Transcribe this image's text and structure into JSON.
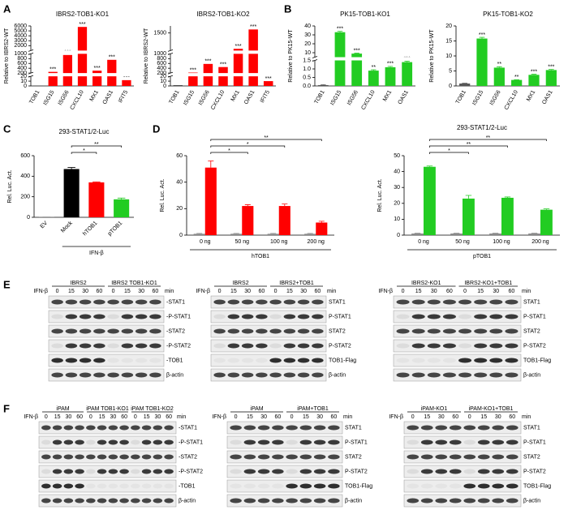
{
  "panel_labels": [
    "A",
    "B",
    "C",
    "D",
    "E",
    "F"
  ],
  "chart_data": [
    {
      "type": "bar",
      "title": "IBRS2-TOB1-KO1",
      "ylabel": "Relative to IBRS2-WT",
      "categories": [
        "TOB1",
        "ISG15",
        "ISG56",
        "CXCL10",
        "MX1",
        "OAS1",
        "IFIT5"
      ],
      "values": [
        0.5,
        250,
        950,
        5800,
        300,
        750,
        12
      ],
      "colors": [
        "#333333",
        "#ff0000",
        "#ff0000",
        "#ff0000",
        "#ff0000",
        "#ff0000",
        "#ff0000"
      ],
      "ysegments": [
        [
          0,
          20
        ],
        [
          200,
          1000
        ],
        [
          1000,
          6000
        ]
      ],
      "yticks": [
        0,
        10,
        20,
        200,
        400,
        600,
        800,
        1000,
        2000,
        3000,
        4000,
        5000,
        6000
      ],
      "annotations": [
        null,
        "***",
        "***",
        "***",
        "***",
        "***",
        "***"
      ]
    },
    {
      "type": "bar",
      "title": "IBRS2-TOB1-KO2",
      "ylabel": "Relative to IBRS2-WT",
      "categories": [
        "TOB1",
        "ISG15",
        "ISG56",
        "CXCL10",
        "MX1",
        "OAS1",
        "IFIT5"
      ],
      "values": [
        1.5,
        220,
        580,
        450,
        1050,
        1600,
        10
      ],
      "colors": [
        "#333333",
        "#ff0000",
        "#ff0000",
        "#ff0000",
        "#ff0000",
        "#ff0000",
        "#ff0000"
      ],
      "ysegments": [
        [
          0,
          20
        ],
        [
          200,
          1000
        ],
        [
          1000,
          1700
        ]
      ],
      "yticks": [
        0,
        10,
        20,
        200,
        400,
        600,
        800,
        1000,
        1500
      ],
      "annotations": [
        null,
        "***",
        "***",
        "***",
        "***",
        "***",
        "***"
      ]
    },
    {
      "type": "bar",
      "title": "PK15-TOB1-KO1",
      "ylabel": "Relative to PK15-WT",
      "categories": [
        "TOB1",
        "ISG15",
        "ISG56",
        "CXCL10",
        "MX1",
        "OAS1"
      ],
      "values": [
        0.05,
        33,
        9,
        0.9,
        1.1,
        1.4
      ],
      "errors": [
        0.02,
        1,
        0.5,
        0.05,
        0.05,
        0.05
      ],
      "colors": [
        "#555555",
        "#22cc22",
        "#22cc22",
        "#22cc22",
        "#22cc22",
        "#22cc22"
      ],
      "ysegments": [
        [
          0,
          1.5
        ],
        [
          5,
          40
        ]
      ],
      "yticks": [
        {
          "value": 0,
          "label": "0.0"
        },
        {
          "value": 0.5,
          "label": "0.5"
        },
        {
          "value": 1,
          "label": "1.0"
        },
        {
          "value": 1.5,
          "label": "1.5"
        },
        10,
        20,
        30,
        40
      ],
      "annotations": [
        null,
        "***",
        "***",
        "**",
        "***",
        "***"
      ]
    },
    {
      "type": "bar",
      "title": "PK15-TOB1-KO2",
      "ylabel": "Relative to PK15-WT",
      "categories": [
        "TOB1",
        "ISG15",
        "ISG56",
        "CXCL10",
        "MX1",
        "OAS1"
      ],
      "values": [
        0.8,
        15.8,
        6.1,
        2.0,
        3.7,
        5.3
      ],
      "errors": [
        0.1,
        0.4,
        0.3,
        0.1,
        0.2,
        0.2
      ],
      "colors": [
        "#555555",
        "#22cc22",
        "#22cc22",
        "#22cc22",
        "#22cc22",
        "#22cc22"
      ],
      "ylim": [
        0,
        20
      ],
      "yticks": [
        0,
        5,
        10,
        15,
        20
      ],
      "annotations": [
        null,
        "***",
        "**",
        "**",
        "***",
        "***"
      ]
    },
    {
      "type": "bar",
      "title": "293-STAT1/2-Luc",
      "ylabel": "Rel. Luc. Act.",
      "categories": [
        "EV",
        "Mock",
        "hTOB1",
        "pTOB1"
      ],
      "values": [
        2,
        470,
        340,
        175
      ],
      "errors": [
        1,
        15,
        5,
        12
      ],
      "colors": [
        "#888888",
        "#000000",
        "#ff0000",
        "#22cc22"
      ],
      "ylim": [
        0,
        600
      ],
      "yticks": [
        0,
        200,
        400,
        600
      ],
      "xlabel": "IFN-β",
      "significance": {
        "reference": "Mock",
        "labels": [
          null,
          null,
          "*",
          "**"
        ]
      }
    },
    {
      "type": "bar",
      "ylabel": "Rel. Luc. Act.",
      "categories": [
        "0 ng",
        "50 ng",
        "100 ng",
        "200 ng"
      ],
      "series": [
        {
          "color": "#888888",
          "values": [
            1,
            1,
            1,
            1
          ],
          "errors": [
            0.3,
            0.3,
            0.3,
            0.3
          ]
        },
        {
          "color": "#ff0000",
          "values": [
            51,
            22,
            22,
            9.5
          ],
          "errors": [
            5,
            1,
            1.5,
            1
          ]
        }
      ],
      "ylim": [
        0,
        60
      ],
      "yticks": [
        0,
        20,
        40,
        60
      ],
      "xlabel": "hTOB1",
      "significance": {
        "reference": "0 ng",
        "labels": [
          null,
          "*",
          "*",
          "**"
        ]
      }
    },
    {
      "type": "bar",
      "title": "293-STAT1/2-Luc",
      "ylabel": "Rel. Luc. Act.",
      "categories": [
        "0 ng",
        "50 ng",
        "100 ng",
        "200 ng"
      ],
      "series": [
        {
          "color": "#888888",
          "values": [
            1,
            1,
            1,
            1
          ],
          "errors": [
            0.2,
            0.2,
            0.2,
            0.2
          ]
        },
        {
          "color": "#22cc22",
          "values": [
            43,
            23,
            23.5,
            16
          ],
          "errors": [
            0.5,
            2,
            0.5,
            0.5
          ]
        }
      ],
      "ylim": [
        0,
        50
      ],
      "yticks": [
        0,
        10,
        20,
        30,
        40,
        50
      ],
      "xlabel": "pTOB1",
      "significance": {
        "reference": "0 ng",
        "labels": [
          null,
          "*",
          "**",
          "**"
        ]
      }
    }
  ],
  "blots": [
    {
      "groups": [
        "IBRS2",
        "IBRS2  TOB1-KO1"
      ],
      "treatment": "IFN-β",
      "times": [
        "0",
        "15",
        "30",
        "60",
        "0",
        "15",
        "30",
        "60"
      ],
      "unit": "min",
      "rows": [
        "-STAT1",
        "-P-STAT1",
        "-STAT2",
        "-P-STAT2",
        "-TOB1",
        "β-actin"
      ]
    },
    {
      "groups": [
        "IBRS2",
        "IBRS2+TOB1"
      ],
      "treatment": "IFN-β",
      "times": [
        "0",
        "15",
        "30",
        "60",
        "0",
        "15",
        "30",
        "60"
      ],
      "unit": "min",
      "rows": [
        "STAT1",
        "P-STAT1",
        "STAT2",
        "P-STAT2",
        "TOB1-Flag",
        "β-actin"
      ]
    },
    {
      "groups": [
        "IBRS2-KO1",
        "IBRS2-KO1+TOB1"
      ],
      "treatment": "IFN-β",
      "times": [
        "0",
        "15",
        "30",
        "60",
        "0",
        "15",
        "30",
        "60"
      ],
      "unit": "min",
      "rows": [
        "STAT1",
        "P-STAT1",
        "STAT2",
        "P-STAT2",
        "TOB1-Flag",
        "β-actin"
      ]
    },
    {
      "groups": [
        "iPAM",
        "iPAM  TOB1-KO1",
        "iPAM  TOB1-KO2"
      ],
      "treatment": "IFN-β",
      "times": [
        "0",
        "15",
        "30",
        "60",
        "0",
        "15",
        "30",
        "60",
        "0",
        "15",
        "30",
        "60"
      ],
      "unit": "min",
      "rows": [
        "-STAT1",
        "-P-STAT1",
        "-STAT2",
        "-P-STAT2",
        "-TOB1",
        "β-actin"
      ]
    },
    {
      "groups": [
        "iPAM",
        "iPAM+TOB1"
      ],
      "treatment": "IFN-β",
      "times": [
        "0",
        "15",
        "30",
        "60",
        "0",
        "15",
        "30",
        "60"
      ],
      "unit": "min",
      "rows": [
        "STAT1",
        "P-STAT1",
        "STAT2",
        "P-STAT2",
        "TOB1-Flag",
        "β-actin"
      ]
    },
    {
      "groups": [
        "iPAM-KO1",
        "iPAM-KO1+TOB1"
      ],
      "treatment": "IFN-β",
      "times": [
        "0",
        "15",
        "30",
        "60",
        "0",
        "15",
        "30",
        "60"
      ],
      "unit": "min",
      "rows": [
        "STAT1",
        "P-STAT1",
        "STAT2",
        "P-STAT2",
        "TOB1-Flag",
        "β-actin"
      ]
    }
  ]
}
